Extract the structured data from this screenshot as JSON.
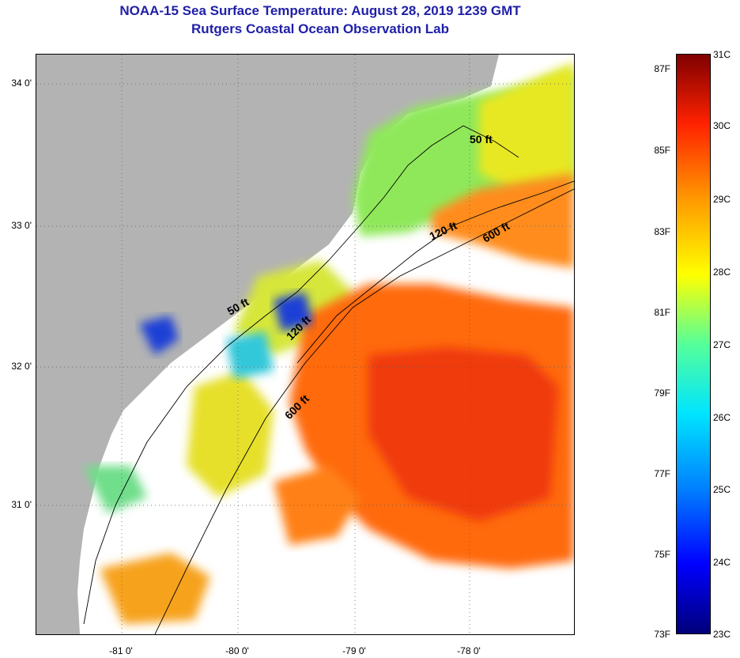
{
  "title": {
    "line1": "NOAA-15 Sea Surface Temperature:  August 28, 2019 1239 GMT",
    "line2": "Rutgers Coastal Ocean Observation Lab"
  },
  "map": {
    "lat_labels": [
      "34 0'",
      "33 0'",
      "32 0'",
      "31 0'"
    ],
    "lon_labels": [
      "-81 0'",
      "-80 0'",
      "-79 0'",
      "-78 0'"
    ],
    "contour_labels": [
      "50 ft",
      "120 ft",
      "600 ft",
      "50 ft",
      "120 ft",
      "600 ft"
    ]
  },
  "colorbar": {
    "fahrenheit": [
      "87F",
      "85F",
      "83F",
      "81F",
      "79F",
      "77F",
      "75F",
      "73F"
    ],
    "celsius": [
      "31C",
      "30C",
      "29C",
      "28C",
      "27C",
      "26C",
      "25C",
      "24C",
      "23C"
    ]
  },
  "colors": {
    "title": "#1f1fa8",
    "land": "#b3b3b3",
    "cloud": "#ffffff"
  }
}
